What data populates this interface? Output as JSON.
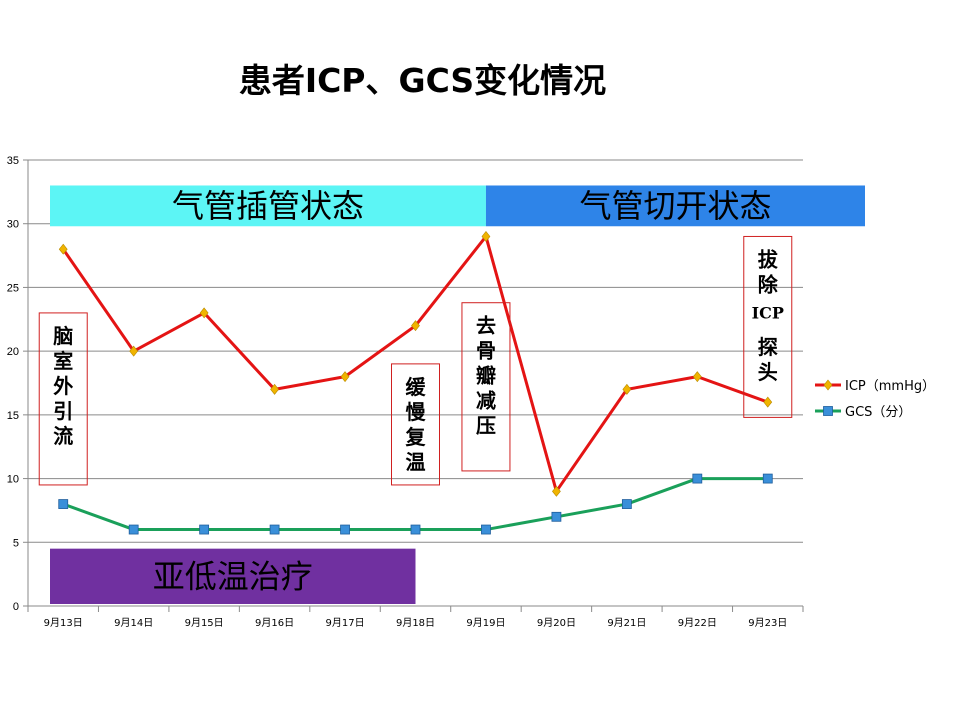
{
  "title": "患者ICP、GCS变化情况",
  "chart_data": {
    "type": "line",
    "categories": [
      "9月13日",
      "9月14日",
      "9月15日",
      "9月16日",
      "9月17日",
      "9月18日",
      "9月19日",
      "9月20日",
      "9月21日",
      "9月22日",
      "9月23日"
    ],
    "series": [
      {
        "name": "ICP（mmHg）",
        "color": "#e41414",
        "marker": "diamond",
        "marker_color": "#f0b400",
        "values": [
          28,
          20,
          23,
          17,
          18,
          22,
          29,
          9,
          17,
          18,
          16
        ]
      },
      {
        "name": "GCS（分）",
        "color": "#1aa05a",
        "marker": "square",
        "marker_color": "#3a8fd9",
        "values": [
          8,
          6,
          6,
          6,
          6,
          6,
          6,
          7,
          8,
          10,
          10
        ]
      }
    ],
    "ylim": [
      0,
      35
    ],
    "yticks": [
      0,
      5,
      10,
      15,
      20,
      25,
      30,
      35
    ],
    "grid": true,
    "legend": "right",
    "bands": [
      {
        "text": "气管插管状态",
        "from": 0,
        "to": 6.5,
        "y_top": 33,
        "y_bottom": 29.8,
        "color": "#5cf5f5"
      },
      {
        "text": "气管切开状态",
        "from": 6.5,
        "to": 11,
        "y_top": 33,
        "y_bottom": 29.8,
        "color": "#2e84e8"
      },
      {
        "text": "亚低温治疗",
        "from": 0,
        "to": 5.5,
        "y_top": 4.5,
        "y_bottom": 0,
        "color": "#7030a0"
      }
    ],
    "annotations": [
      {
        "text": "脑室外引流",
        "category": 0,
        "y_top": 23.0,
        "y_bottom": 9.5
      },
      {
        "text": "缓慢复温",
        "category": 5,
        "y_top": 19.0,
        "y_bottom": 9.5
      },
      {
        "text": "去骨瓣减压",
        "category": 6,
        "y_top": 23.8,
        "y_bottom": 10.6
      },
      {
        "text": "拔除ICP探头",
        "category": 10,
        "y_top": 29.0,
        "y_bottom": 14.8
      }
    ]
  }
}
